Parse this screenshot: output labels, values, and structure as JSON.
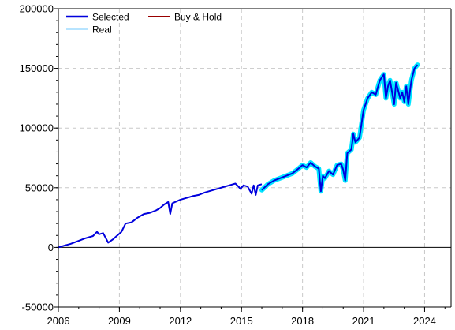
{
  "chart_data": {
    "type": "line",
    "title": "",
    "xlabel": "",
    "ylabel": "",
    "xlim": [
      2006,
      2025.3
    ],
    "ylim": [
      -50000,
      200000
    ],
    "x_ticks": [
      "2006",
      "2009",
      "2012",
      "2015",
      "2018",
      "2021",
      "2024"
    ],
    "y_ticks": [
      "-50000",
      "0",
      "50000",
      "100000",
      "150000",
      "200000"
    ],
    "grid": true,
    "legend_position": "top-left",
    "series": [
      {
        "name": "Selected",
        "color": "#0000dd",
        "x": [
          2006.0,
          2006.3,
          2006.6,
          2007.0,
          2007.3,
          2007.7,
          2007.9,
          2008.0,
          2008.2,
          2008.45,
          2008.7,
          2008.9,
          2009.1,
          2009.3,
          2009.6,
          2009.9,
          2010.2,
          2010.5,
          2010.8,
          2011.0,
          2011.2,
          2011.4,
          2011.5,
          2011.6,
          2011.8,
          2012.0,
          2012.3,
          2012.6,
          2012.9,
          2013.2,
          2013.5,
          2013.8,
          2014.1,
          2014.4,
          2014.7,
          2014.85,
          2014.95,
          2015.1,
          2015.3,
          2015.5,
          2015.6,
          2015.7,
          2015.8,
          2016.0
        ],
        "y": [
          0,
          1500,
          3000,
          5500,
          7500,
          9500,
          13000,
          11000,
          12000,
          4000,
          7000,
          10000,
          13000,
          20000,
          21000,
          25000,
          28000,
          29000,
          31000,
          33000,
          36000,
          38000,
          28000,
          37000,
          38500,
          40000,
          41500,
          43000,
          44000,
          46000,
          47500,
          49000,
          50500,
          52000,
          53500,
          51000,
          49000,
          52000,
          51000,
          45000,
          52000,
          44000,
          52000,
          53000
        ]
      },
      {
        "name": "Real",
        "color": "#00e5ff",
        "x": [
          2016.0,
          2016.3,
          2016.6,
          2016.9,
          2017.2,
          2017.5,
          2017.8,
          2018.0,
          2018.2,
          2018.4,
          2018.6,
          2018.8,
          2018.9,
          2019.0,
          2019.1,
          2019.3,
          2019.5,
          2019.7,
          2019.9,
          2020.0,
          2020.1,
          2020.2,
          2020.4,
          2020.5,
          2020.6,
          2020.8,
          2021.0,
          2021.2,
          2021.4,
          2021.6,
          2021.8,
          2022.0,
          2022.1,
          2022.2,
          2022.3,
          2022.5,
          2022.6,
          2022.8,
          2022.9,
          2023.0,
          2023.1,
          2023.2,
          2023.35,
          2023.5,
          2023.65
        ],
        "y": [
          48000,
          53000,
          56000,
          58000,
          60000,
          62000,
          66000,
          69000,
          67000,
          71000,
          68000,
          66000,
          47000,
          60000,
          58000,
          64000,
          61000,
          69000,
          70000,
          65000,
          56000,
          79000,
          82000,
          95000,
          88000,
          92000,
          115000,
          125000,
          130000,
          128000,
          140000,
          145000,
          125000,
          135000,
          140000,
          120000,
          138000,
          125000,
          130000,
          122000,
          135000,
          120000,
          140000,
          150000,
          153000
        ]
      },
      {
        "name": "Buy & Hold",
        "color": "#990000",
        "x": [],
        "y": []
      }
    ]
  }
}
